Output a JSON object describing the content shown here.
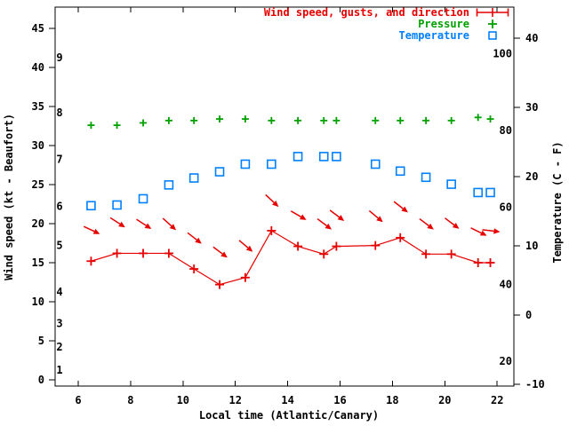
{
  "chart_data": {
    "type": "line",
    "background": "#ffffff",
    "x_axis": {
      "label": "Local time (Atlantic/Canary)",
      "ticks": [
        6,
        8,
        10,
        12,
        14,
        16,
        18,
        20,
        22
      ],
      "range_hours": [
        5.12,
        22.64
      ],
      "grid": false
    },
    "y_left": {
      "label": "Wind speed (kt - Beaufort)",
      "ticks_kt": [
        0,
        5,
        10,
        15,
        20,
        25,
        30,
        35,
        40,
        45
      ],
      "beaufort_inner_labels": [
        {
          "label": "1",
          "kt": 1
        },
        {
          "label": "2",
          "kt": 4
        },
        {
          "label": "3",
          "kt": 7
        },
        {
          "label": "4",
          "kt": 11
        },
        {
          "label": "5",
          "kt": 17
        },
        {
          "label": "6",
          "kt": 22
        },
        {
          "label": "7",
          "kt": 28
        },
        {
          "label": "8",
          "kt": 34
        },
        {
          "label": "9",
          "kt": 41
        }
      ]
    },
    "y_right": {
      "label": "Temperature (C - F)",
      "ticks_c": [
        -10,
        0,
        10,
        20,
        30,
        40
      ],
      "fahrenheit_inner_labels": [
        20,
        40,
        60,
        80,
        100
      ]
    },
    "legend": [
      {
        "label": "Wind speed, gusts, and direction",
        "color": "#e60000",
        "marker": "errorbar-line-plus"
      },
      {
        "label": "Pressure",
        "color": "#00a000",
        "marker": "plus"
      },
      {
        "label": "Temperature",
        "color": "#0080ff",
        "marker": "open-square"
      }
    ],
    "series": {
      "time_hours": [
        6.49,
        7.48,
        8.48,
        9.46,
        10.42,
        11.4,
        12.38,
        13.38,
        14.39,
        15.38,
        15.86,
        17.35,
        18.3,
        19.28,
        20.25,
        21.27,
        21.74
      ],
      "wind_speed_kt": [
        15.2,
        16.2,
        16.2,
        16.2,
        14.2,
        12.2,
        13.1,
        19.1,
        17.1,
        16.1,
        17.1,
        17.2,
        18.2,
        16.1,
        16.1,
        15.0,
        15.0
      ],
      "wind_gust_kt": [
        19.2,
        20.2,
        20.0,
        20.0,
        18.2,
        16.4,
        17.2,
        23.0,
        21.1,
        20.0,
        21.1,
        21.0,
        22.2,
        20.0,
        20.1,
        19.0,
        19.1
      ],
      "gust_arrow_angle_deg_cw_from_east": [
        25,
        33,
        33,
        42,
        38,
        37,
        40,
        43,
        30,
        37,
        37,
        40,
        38,
        37,
        37,
        26,
        7
      ],
      "temperature_c": [
        15.8,
        15.9,
        16.8,
        18.8,
        19.8,
        20.7,
        21.8,
        21.8,
        22.9,
        22.9,
        22.9,
        21.8,
        20.8,
        19.9,
        18.9,
        17.7,
        17.7
      ],
      "pressure_plotted_left_axis_kt_equiv": [
        32.6,
        32.6,
        32.9,
        33.2,
        33.2,
        33.4,
        33.4,
        33.2,
        33.2,
        33.2,
        33.2,
        33.2,
        33.2,
        33.2,
        33.2,
        33.6,
        33.4
      ],
      "pressure_axis_note": "no pressure scale is drawn on the plot"
    }
  }
}
